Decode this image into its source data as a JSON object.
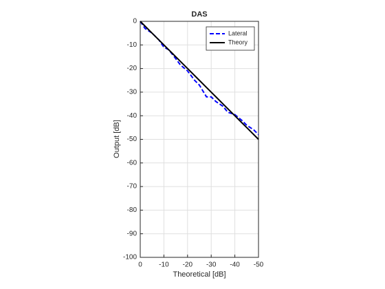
{
  "chart_data": {
    "type": "line",
    "title": "DAS",
    "x_label": "Theoretical [dB]",
    "y_label": "Output [dB]",
    "x": [
      0,
      -2,
      -5,
      -8,
      -10,
      -12,
      -14,
      -17,
      -20,
      -23,
      -25,
      -28,
      -30,
      -32,
      -35,
      -37,
      -40,
      -43,
      -45,
      -48,
      -50
    ],
    "series": [
      {
        "name": "Lateral",
        "color": "#0000ff",
        "dash": "6,3",
        "values": [
          0,
          -3,
          -5,
          -8,
          -11,
          -12,
          -14.5,
          -18.5,
          -21,
          -25,
          -27,
          -32,
          -32,
          -34,
          -36,
          -38.5,
          -39.5,
          -42,
          -44,
          -46,
          -48
        ]
      },
      {
        "name": "Theory",
        "color": "#000000",
        "values": [
          0,
          -2,
          -5,
          -8,
          -10,
          -12,
          -14,
          -17,
          -20,
          -23,
          -25,
          -28,
          -30,
          -32,
          -35,
          -37,
          -40,
          -43,
          -45,
          -48,
          -50
        ]
      }
    ],
    "xlim": [
      0,
      -50
    ],
    "xticks": [
      0,
      -10,
      -20,
      -30,
      -40,
      -50
    ],
    "ylim": [
      -100,
      0
    ],
    "yticks": [
      0,
      -10,
      -20,
      -30,
      -40,
      -50,
      -60,
      -70,
      -80,
      -90,
      -100
    ],
    "grid": true,
    "legend": "upper right"
  }
}
